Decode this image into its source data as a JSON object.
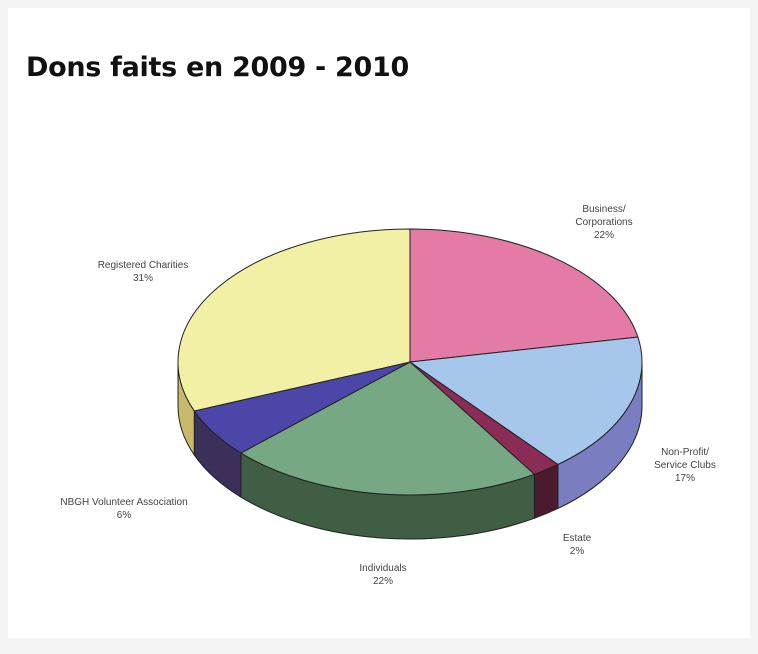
{
  "title": "Dons faits en 2009 - 2010",
  "chart_data": {
    "type": "pie",
    "title": "Dons faits en 2009 - 2010",
    "slices": [
      {
        "label": "Business/\nCorporations",
        "value": 22,
        "display": "22%",
        "color": "#e47aa6",
        "side": "#b85c82"
      },
      {
        "label": "Non-Profit/\nService Clubs",
        "value": 17,
        "display": "17%",
        "color": "#a7c6ec",
        "side": "#7a7ec0"
      },
      {
        "label": "Estate",
        "value": 2,
        "display": "2%",
        "color": "#8a2c56",
        "side": "#4a1a2e"
      },
      {
        "label": "Individuals",
        "value": 22,
        "display": "22%",
        "color": "#77a884",
        "side": "#3f5e44"
      },
      {
        "label": "NBGH Volunteer Association",
        "value": 6,
        "display": "6%",
        "color": "#4c46a8",
        "side": "#3c2f5a"
      },
      {
        "label": "Registered Charities",
        "value": 31,
        "display": "31%",
        "color": "#f1f0a5",
        "side": "#c7b86a"
      }
    ]
  }
}
